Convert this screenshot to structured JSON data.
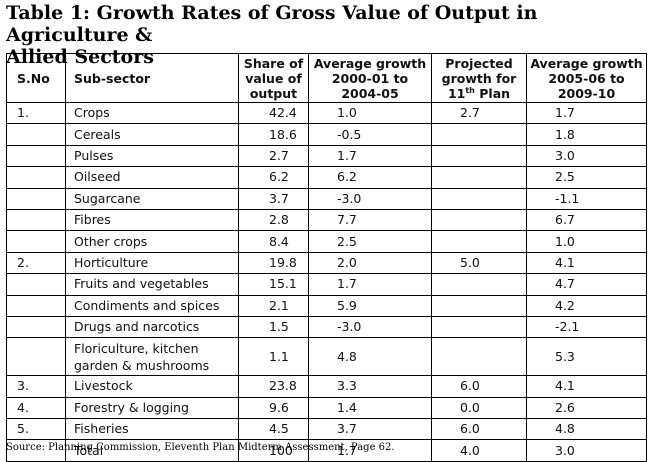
{
  "title": {
    "line1": "Table 1: Growth Rates of Gross Value of Output in Agriculture &",
    "line2": "Allied Sectors"
  },
  "headers": {
    "sno": "S.No",
    "subsector": "Sub-sector",
    "share": "Share of value of output",
    "growth1": "Average growth 2000-01 to 2004-05",
    "projected_prefix": "Projected growth for 11",
    "projected_sup": "th",
    "projected_suffix": " Plan",
    "growth2": "Average growth 2005-06 to 2009-10"
  },
  "rows": [
    {
      "sno": "1.",
      "sector": "Crops",
      "share": "42.4",
      "g1": "1.0",
      "proj": "2.7",
      "g2": "1.7"
    },
    {
      "sno": "",
      "sector": "Cereals",
      "share": "18.6",
      "g1": "-0.5",
      "proj": "",
      "g2": "1.8"
    },
    {
      "sno": "",
      "sector": "Pulses",
      "share": "2.7",
      "g1": "1.7",
      "proj": "",
      "g2": "3.0"
    },
    {
      "sno": "",
      "sector": "Oilseed",
      "share": "6.2",
      "g1": "6.2",
      "proj": "",
      "g2": "2.5"
    },
    {
      "sno": "",
      "sector": "Sugarcane",
      "share": "3.7",
      "g1": "-3.0",
      "proj": "",
      "g2": "-1.1"
    },
    {
      "sno": "",
      "sector": "Fibres",
      "share": "2.8",
      "g1": "7.7",
      "proj": "",
      "g2": "6.7"
    },
    {
      "sno": "",
      "sector": "Other crops",
      "share": "8.4",
      "g1": "2.5",
      "proj": "",
      "g2": "1.0"
    },
    {
      "sno": "2.",
      "sector": "Horticulture",
      "share": "19.8",
      "g1": "2.0",
      "proj": "5.0",
      "g2": "4.1"
    },
    {
      "sno": "",
      "sector": "Fruits and vegetables",
      "share": "15.1",
      "g1": "1.7",
      "proj": "",
      "g2": "4.7"
    },
    {
      "sno": "",
      "sector": "Condiments and spices",
      "share": "2.1",
      "g1": "5.9",
      "proj": "",
      "g2": "4.2"
    },
    {
      "sno": "",
      "sector": "Drugs and narcotics",
      "share": "1.5",
      "g1": "-3.0",
      "proj": "",
      "g2": "-2.1"
    },
    {
      "sno": "",
      "sector": "Floriculture, kitchen garden & mushrooms",
      "share": "1.1",
      "g1": "4.8",
      "proj": "",
      "g2": "5.3"
    },
    {
      "sno": "3.",
      "sector": "Livestock",
      "share": "23.8",
      "g1": "3.3",
      "proj": "6.0",
      "g2": "4.1"
    },
    {
      "sno": "4.",
      "sector": "Forestry & logging",
      "share": "9.6",
      "g1": "1.4",
      "proj": "0.0",
      "g2": "2.6"
    },
    {
      "sno": "5.",
      "sector": "Fisheries",
      "share": "4.5",
      "g1": "3.7",
      "proj": "6.0",
      "g2": "4.8"
    },
    {
      "sno": "",
      "sector": "Total",
      "share": "100",
      "g1": "1.7",
      "proj": "4.0",
      "g2": "3.0"
    }
  ],
  "source": "Source: Planning Commission, Eleventh Plan Midterm Assessment, Page 62."
}
